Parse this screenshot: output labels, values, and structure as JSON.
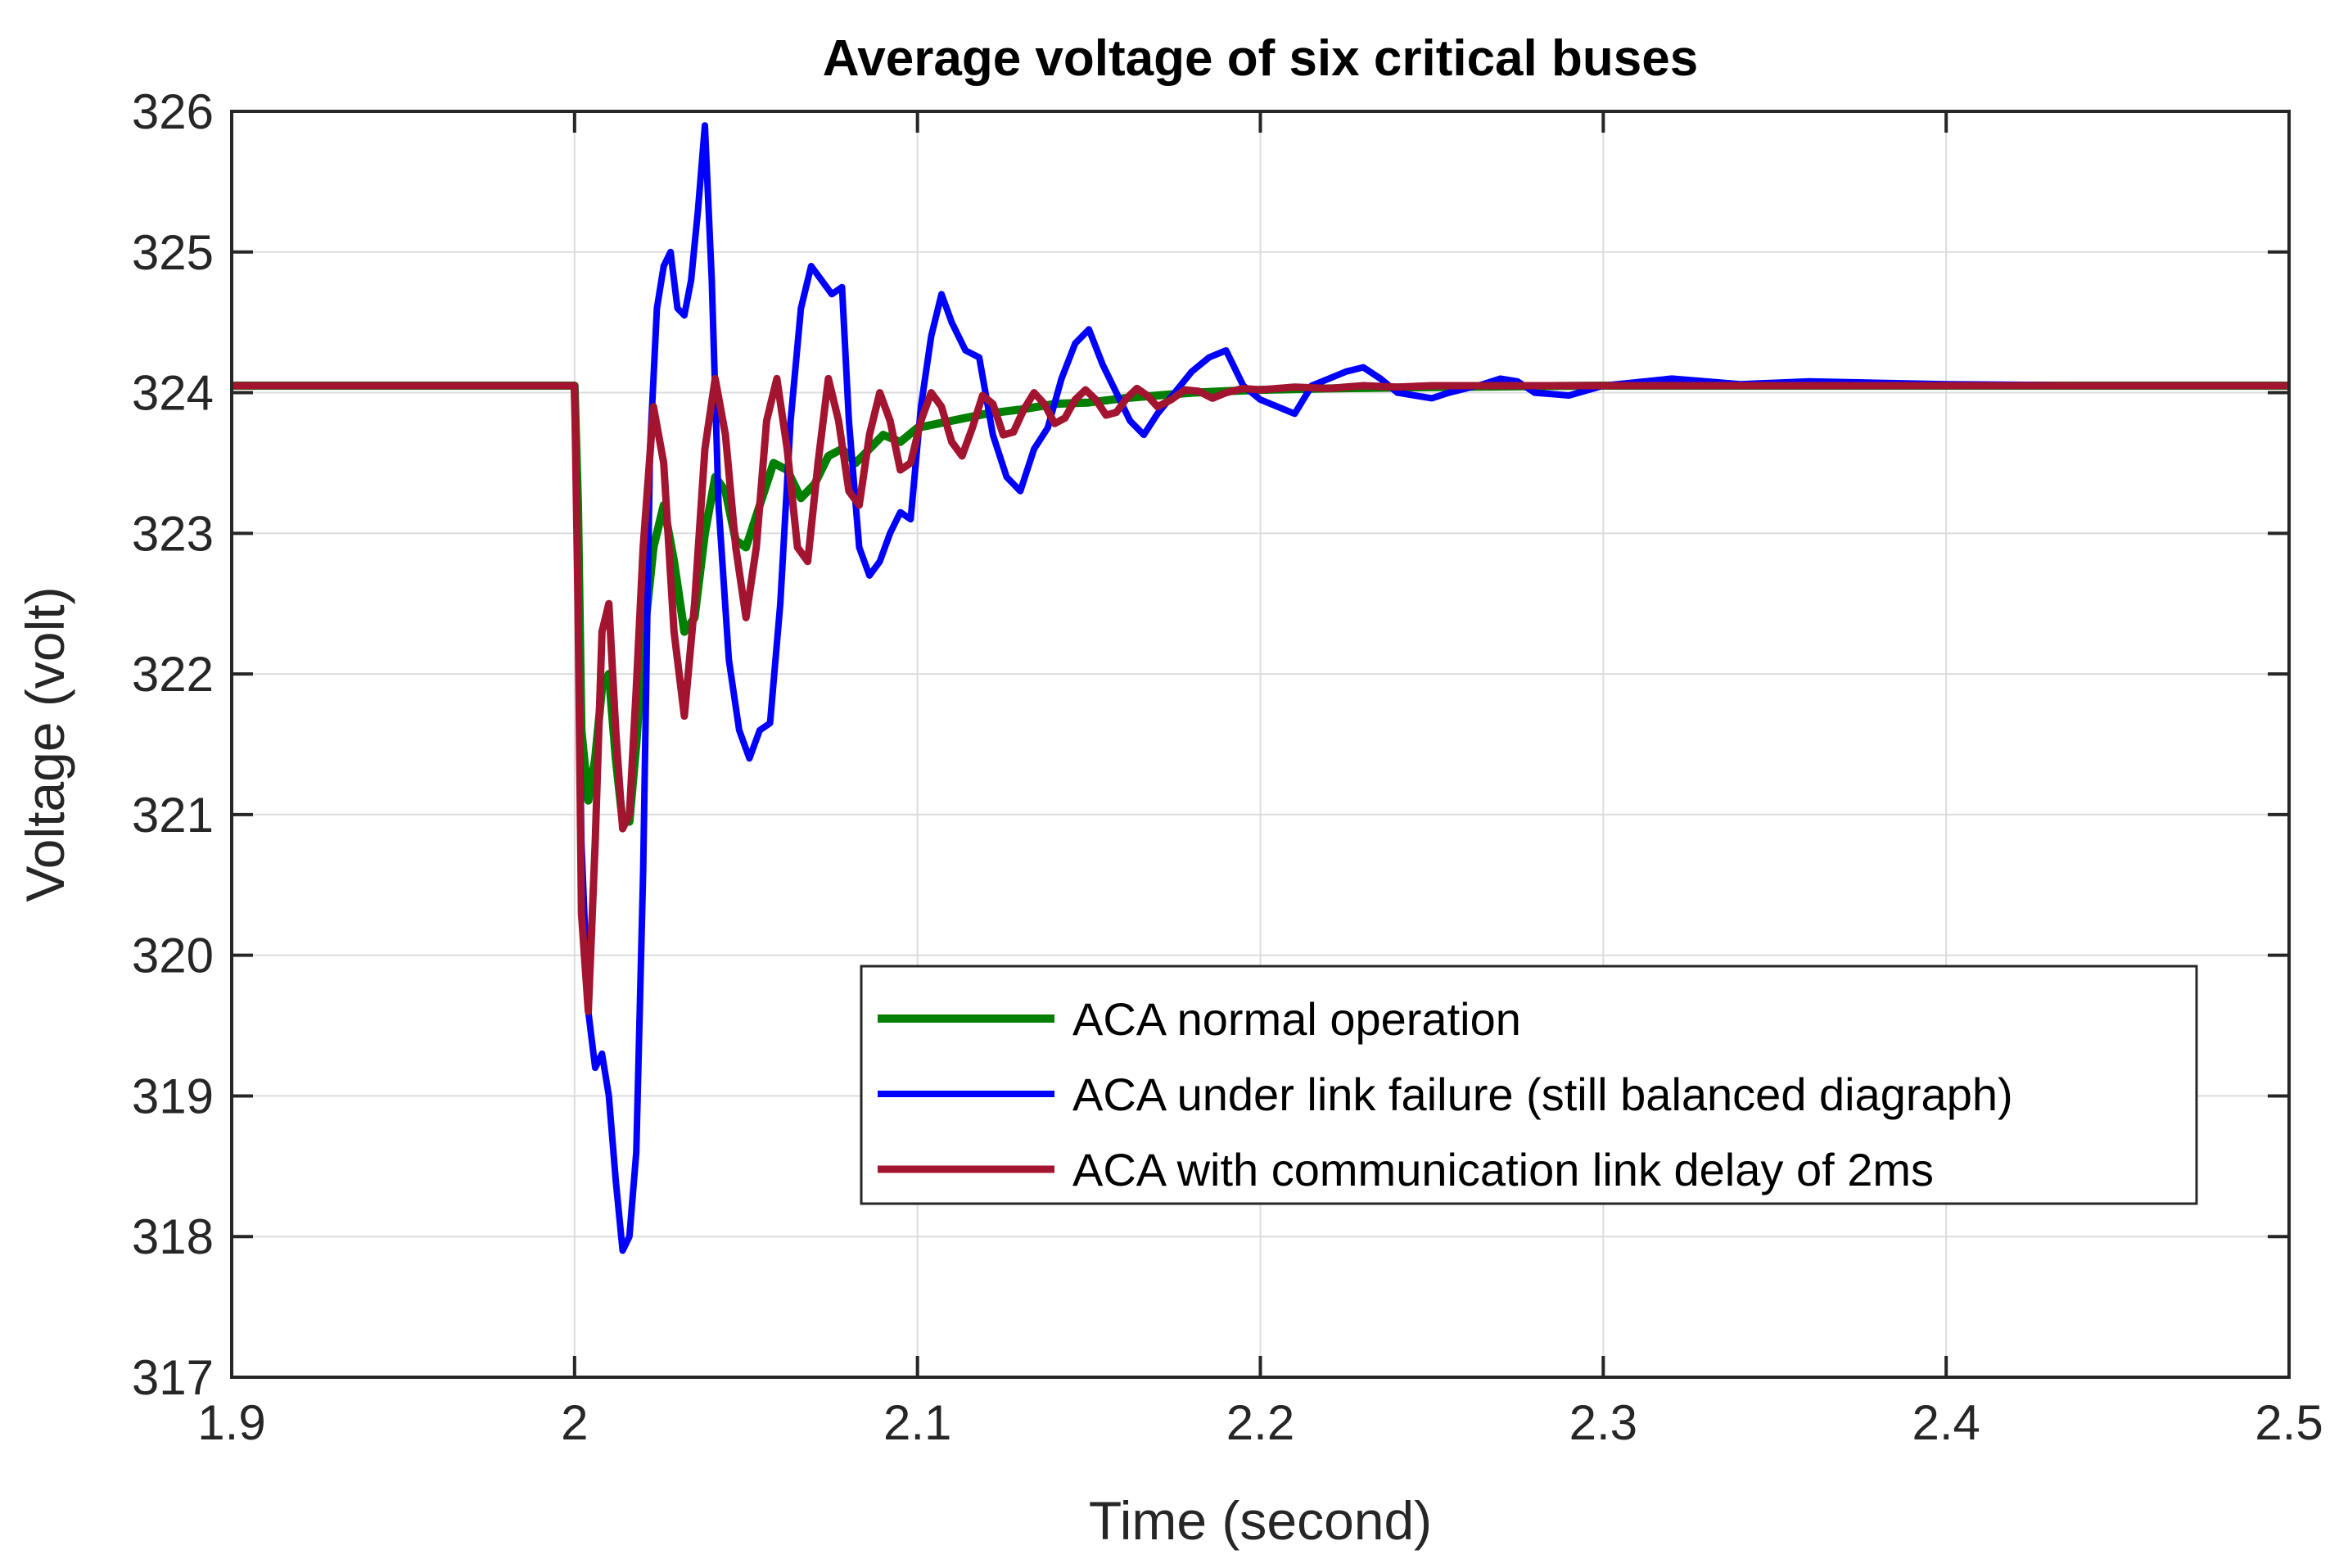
{
  "chart_data": {
    "type": "line",
    "title": "Average voltage of six critical buses",
    "xlabel": "Time (second)",
    "ylabel": "Voltage (volt)",
    "xlim": [
      1.9,
      2.5
    ],
    "ylim": [
      317,
      326
    ],
    "xticks": [
      1.9,
      2.0,
      2.1,
      2.2,
      2.3,
      2.4,
      2.5
    ],
    "xtick_labels": [
      "1.9",
      "2",
      "2.1",
      "2.2",
      "2.3",
      "2.4",
      "2.5"
    ],
    "yticks": [
      317,
      318,
      319,
      320,
      321,
      322,
      323,
      324,
      325,
      326
    ],
    "ytick_labels": [
      "317",
      "318",
      "319",
      "320",
      "321",
      "322",
      "323",
      "324",
      "325",
      "326"
    ],
    "grid": true,
    "legend_position": "lower-right",
    "series": [
      {
        "name": "ACA normal operation",
        "color": "#007f00",
        "x": [
          1.9,
          2.0,
          2.001,
          2.002,
          2.004,
          2.006,
          2.008,
          2.01,
          2.012,
          2.014,
          2.016,
          2.018,
          2.02,
          2.023,
          2.026,
          2.029,
          2.032,
          2.035,
          2.038,
          2.041,
          2.044,
          2.047,
          2.05,
          2.054,
          2.058,
          2.062,
          2.066,
          2.07,
          2.074,
          2.078,
          2.082,
          2.086,
          2.09,
          2.095,
          2.1,
          2.11,
          2.12,
          2.13,
          2.14,
          2.15,
          2.16,
          2.17,
          2.18,
          2.19,
          2.2,
          2.22,
          2.25,
          2.3,
          2.4,
          2.5
        ],
        "y": [
          324.05,
          324.05,
          323.2,
          321.6,
          321.1,
          321.4,
          321.9,
          322.0,
          321.4,
          320.95,
          320.95,
          321.5,
          322.2,
          322.9,
          323.2,
          322.8,
          322.3,
          322.4,
          323.0,
          323.4,
          323.3,
          322.95,
          322.9,
          323.2,
          323.5,
          323.45,
          323.25,
          323.35,
          323.55,
          323.6,
          323.5,
          323.6,
          323.7,
          323.65,
          323.75,
          323.8,
          323.85,
          323.88,
          323.92,
          323.93,
          323.96,
          323.98,
          324.0,
          324.01,
          324.02,
          324.03,
          324.04,
          324.05,
          324.05,
          324.05
        ]
      },
      {
        "name": "ACA under link failure (still balanced diagraph)",
        "color": "#0000ff",
        "x": [
          1.9,
          2.0,
          2.001,
          2.002,
          2.004,
          2.006,
          2.008,
          2.01,
          2.012,
          2.014,
          2.016,
          2.018,
          2.02,
          2.022,
          2.024,
          2.026,
          2.028,
          2.03,
          2.032,
          2.034,
          2.036,
          2.038,
          2.04,
          2.042,
          2.045,
          2.048,
          2.051,
          2.054,
          2.057,
          2.06,
          2.063,
          2.066,
          2.069,
          2.072,
          2.075,
          2.078,
          2.08,
          2.083,
          2.086,
          2.089,
          2.092,
          2.095,
          2.098,
          2.101,
          2.104,
          2.107,
          2.11,
          2.114,
          2.118,
          2.122,
          2.126,
          2.13,
          2.134,
          2.138,
          2.142,
          2.146,
          2.15,
          2.154,
          2.158,
          2.162,
          2.166,
          2.17,
          2.175,
          2.18,
          2.185,
          2.19,
          2.195,
          2.2,
          2.205,
          2.21,
          2.215,
          2.22,
          2.225,
          2.23,
          2.235,
          2.24,
          2.245,
          2.25,
          2.255,
          2.26,
          2.265,
          2.27,
          2.275,
          2.28,
          2.29,
          2.3,
          2.32,
          2.34,
          2.36,
          2.4,
          2.45,
          2.5
        ],
        "y": [
          324.05,
          324.05,
          322.5,
          320.8,
          319.6,
          319.2,
          319.3,
          319.0,
          318.4,
          317.9,
          318.0,
          318.6,
          320.6,
          323.6,
          324.6,
          324.9,
          325.0,
          324.6,
          324.55,
          324.8,
          325.3,
          325.9,
          324.8,
          323.2,
          322.1,
          321.6,
          321.4,
          321.6,
          321.65,
          322.5,
          323.8,
          324.6,
          324.9,
          324.8,
          324.7,
          324.75,
          323.8,
          322.9,
          322.7,
          322.8,
          323.0,
          323.15,
          323.1,
          323.9,
          324.4,
          324.7,
          324.5,
          324.3,
          324.25,
          323.7,
          323.4,
          323.3,
          323.6,
          323.75,
          324.1,
          324.35,
          324.45,
          324.2,
          324.0,
          323.8,
          323.7,
          323.85,
          324.0,
          324.15,
          324.25,
          324.3,
          324.05,
          323.95,
          323.9,
          323.85,
          324.05,
          324.1,
          324.15,
          324.18,
          324.1,
          324.0,
          323.98,
          323.96,
          324.0,
          324.03,
          324.06,
          324.1,
          324.08,
          324.0,
          323.98,
          324.05,
          324.1,
          324.06,
          324.08,
          324.06,
          324.05,
          324.05
        ]
      },
      {
        "name": "ACA with communication link delay of 2ms",
        "color": "#a2142f",
        "x": [
          1.9,
          2.0,
          2.001,
          2.002,
          2.004,
          2.006,
          2.008,
          2.01,
          2.012,
          2.014,
          2.016,
          2.018,
          2.02,
          2.023,
          2.026,
          2.029,
          2.032,
          2.035,
          2.038,
          2.041,
          2.044,
          2.047,
          2.05,
          2.053,
          2.056,
          2.059,
          2.062,
          2.065,
          2.068,
          2.071,
          2.074,
          2.077,
          2.08,
          2.083,
          2.086,
          2.089,
          2.092,
          2.095,
          2.098,
          2.101,
          2.104,
          2.107,
          2.11,
          2.113,
          2.116,
          2.119,
          2.122,
          2.125,
          2.128,
          2.131,
          2.134,
          2.137,
          2.14,
          2.143,
          2.146,
          2.149,
          2.152,
          2.155,
          2.158,
          2.161,
          2.164,
          2.167,
          2.17,
          2.174,
          2.178,
          2.182,
          2.186,
          2.19,
          2.195,
          2.2,
          2.21,
          2.22,
          2.23,
          2.24,
          2.25,
          2.27,
          2.3,
          2.35,
          2.4,
          2.5
        ],
        "y": [
          324.05,
          324.05,
          322.5,
          320.3,
          319.6,
          320.8,
          322.3,
          322.5,
          321.6,
          320.9,
          321.0,
          321.9,
          322.9,
          323.9,
          323.5,
          322.3,
          321.7,
          322.5,
          323.6,
          324.1,
          323.7,
          322.9,
          322.4,
          322.9,
          323.8,
          324.1,
          323.6,
          322.9,
          322.8,
          323.5,
          324.1,
          323.8,
          323.3,
          323.2,
          323.7,
          324.0,
          323.8,
          323.45,
          323.5,
          323.8,
          324.0,
          323.9,
          323.65,
          323.55,
          323.75,
          323.98,
          323.92,
          323.7,
          323.72,
          323.88,
          324.0,
          323.92,
          323.78,
          323.82,
          323.95,
          324.02,
          323.95,
          323.84,
          323.86,
          323.96,
          324.03,
          323.98,
          323.9,
          323.95,
          324.02,
          324.01,
          323.96,
          324.0,
          324.03,
          324.02,
          324.04,
          324.03,
          324.05,
          324.04,
          324.05,
          324.05,
          324.05,
          324.05,
          324.05,
          324.05
        ]
      }
    ]
  }
}
